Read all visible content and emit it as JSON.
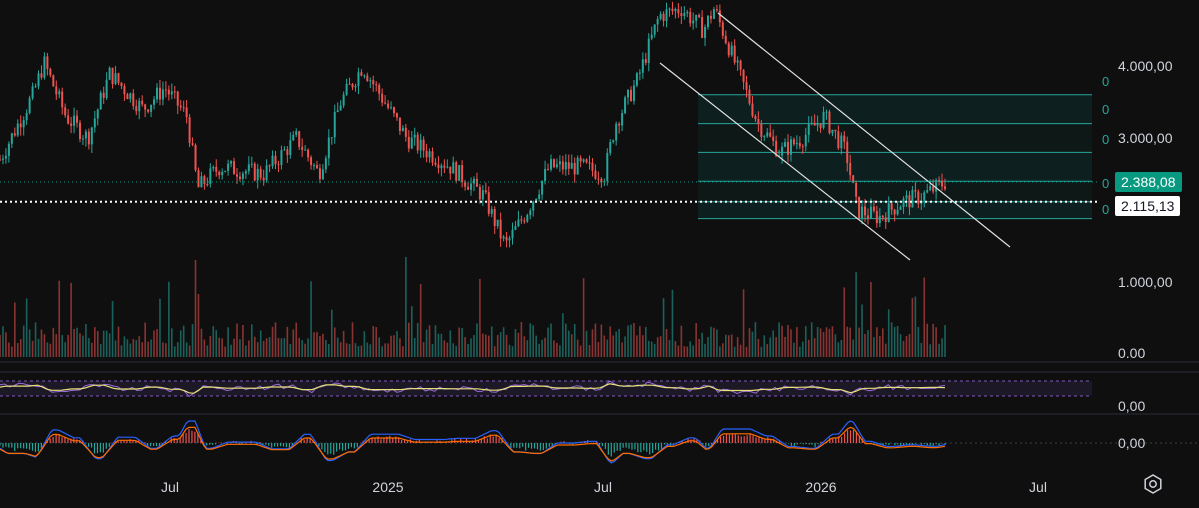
{
  "chart_data": {
    "type": "candlestick",
    "price_axis": {
      "ticks": [
        {
          "value": 4000,
          "label": "4.000,00"
        },
        {
          "value": 3000,
          "label": "3.000,00"
        },
        {
          "value": 1000,
          "label": "1.000,00"
        }
      ],
      "ylim": [
        950,
        5000
      ]
    },
    "volume_axis": {
      "label": "0.00"
    },
    "rsi_axis": {
      "label": "0,00"
    },
    "macd_axis": {
      "label": "0,00"
    },
    "x_ticks": [
      "Jul",
      "2025",
      "Jul",
      "2026",
      "Jul"
    ],
    "current_price": {
      "value": 2388.08,
      "label": "2.388,08",
      "color": "#089981"
    },
    "reference_price": {
      "value": 2115.13,
      "label": "2.115,13"
    },
    "fib_levels": [
      3600,
      3200,
      2800,
      2400,
      2115,
      1880
    ],
    "fib_labels": [
      "0",
      "0",
      "0",
      "0",
      "0"
    ],
    "price_path": [
      {
        "x": 0,
        "y": 2700
      },
      {
        "x": 3,
        "y": 3600
      },
      {
        "x": 4,
        "y": 4050
      },
      {
        "x": 6,
        "y": 3300
      },
      {
        "x": 8,
        "y": 3000
      },
      {
        "x": 10,
        "y": 3900
      },
      {
        "x": 13,
        "y": 3400
      },
      {
        "x": 15,
        "y": 3700
      },
      {
        "x": 17,
        "y": 3300
      },
      {
        "x": 18,
        "y": 2300
      },
      {
        "x": 20,
        "y": 2600
      },
      {
        "x": 24,
        "y": 2500
      },
      {
        "x": 27,
        "y": 3000
      },
      {
        "x": 29,
        "y": 2500
      },
      {
        "x": 31,
        "y": 3500
      },
      {
        "x": 33,
        "y": 4000
      },
      {
        "x": 35,
        "y": 3500
      },
      {
        "x": 37,
        "y": 3000
      },
      {
        "x": 39,
        "y": 2800
      },
      {
        "x": 41,
        "y": 2600
      },
      {
        "x": 44,
        "y": 2200
      },
      {
        "x": 46,
        "y": 1500
      },
      {
        "x": 48,
        "y": 2000
      },
      {
        "x": 50,
        "y": 2600
      },
      {
        "x": 53,
        "y": 2600
      },
      {
        "x": 55,
        "y": 2500
      },
      {
        "x": 56,
        "y": 3200
      },
      {
        "x": 58,
        "y": 3800
      },
      {
        "x": 60,
        "y": 4700
      },
      {
        "x": 62,
        "y": 4800
      },
      {
        "x": 64,
        "y": 4500
      },
      {
        "x": 65,
        "y": 4800
      },
      {
        "x": 67,
        "y": 4000
      },
      {
        "x": 69,
        "y": 3200
      },
      {
        "x": 71,
        "y": 2800
      },
      {
        "x": 73,
        "y": 3000
      },
      {
        "x": 75,
        "y": 3300
      },
      {
        "x": 77,
        "y": 2800
      },
      {
        "x": 78,
        "y": 2000
      },
      {
        "x": 80,
        "y": 1900
      },
      {
        "x": 82,
        "y": 2100
      },
      {
        "x": 84,
        "y": 2200
      },
      {
        "x": 86,
        "y": 2388
      }
    ]
  }
}
